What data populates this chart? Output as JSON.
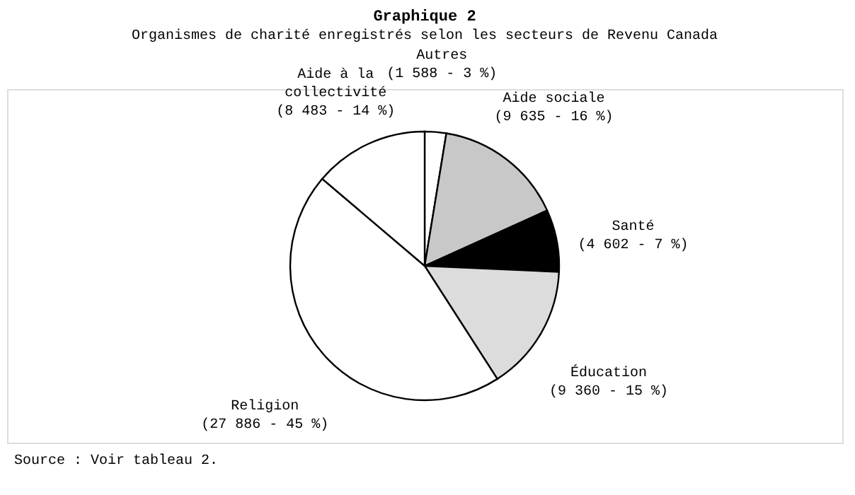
{
  "chart_data": {
    "type": "pie",
    "title": "Graphique 2",
    "subtitle": "Organismes de charité enregistrés selon les secteurs de Revenu Canada",
    "categories": [
      "Autres",
      "Aide sociale",
      "Santé",
      "Éducation",
      "Religion",
      "Aide à la collectivité"
    ],
    "values": [
      1588,
      9635,
      4602,
      9360,
      27886,
      8483
    ],
    "colors": [
      "#ffffff",
      "#c8c8c8",
      "#000000",
      "#dcdcdc",
      "#ffffff",
      "#ffffff"
    ],
    "value_labels": [
      "(1 588 - 3 %)",
      "(9 635 - 16 %)",
      "(4 602 - 7 %)",
      "(9 360 - 15 %)",
      "(27 886 - 45 %)",
      "(8 483 - 14 %)"
    ],
    "annotations": [
      "Source :  Voir tableau 2."
    ],
    "legend": false
  }
}
